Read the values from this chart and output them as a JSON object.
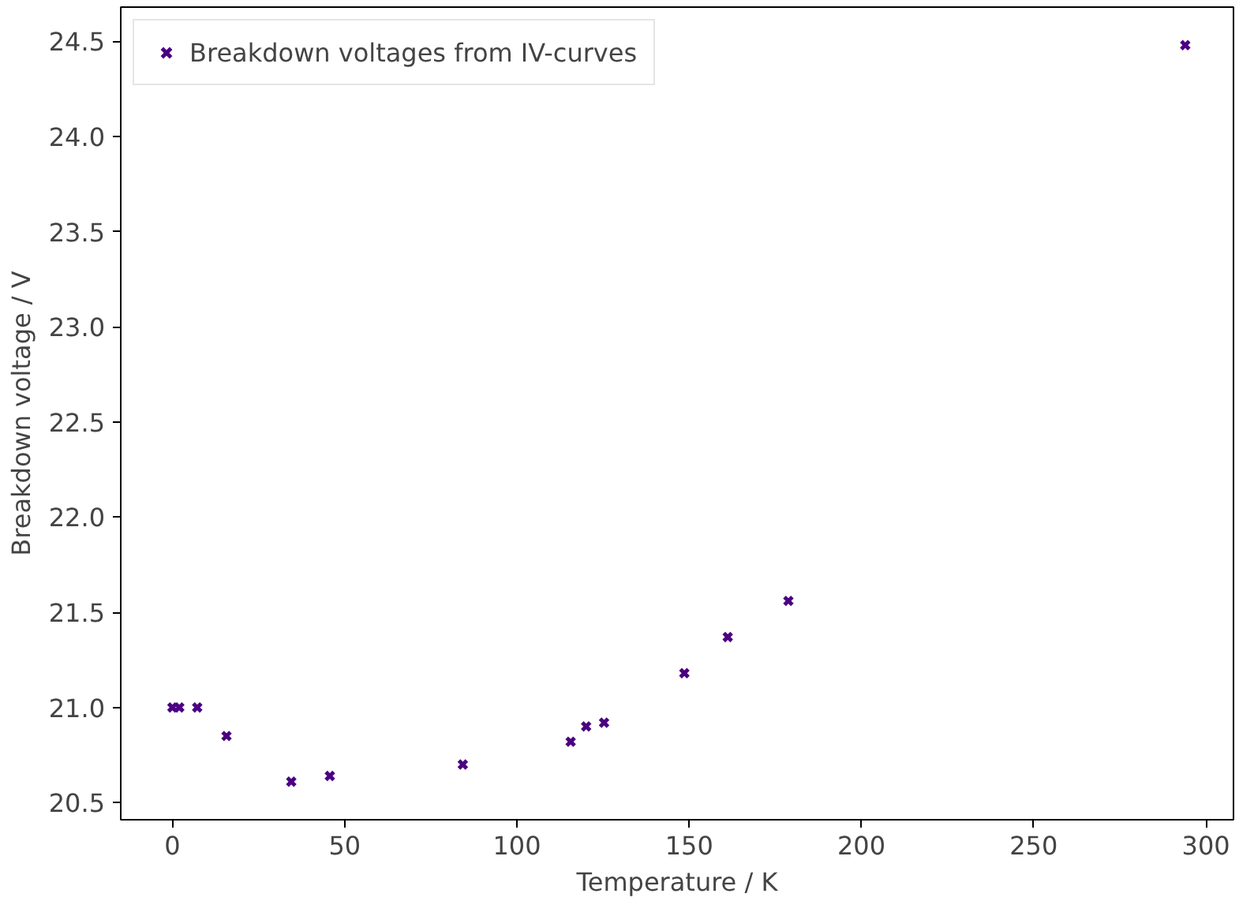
{
  "chart_data": {
    "type": "scatter",
    "xlabel": "Temperature / K",
    "ylabel": "Breakdown voltage / V",
    "x": [
      0,
      2,
      7.2,
      15.7,
      34.5,
      45.7,
      84.3,
      115.6,
      120.1,
      125.3,
      148.6,
      161.2,
      178.8,
      294
    ],
    "series": [
      {
        "name": "Breakdown voltages from IV-curves",
        "color": "#4b0082",
        "values": [
          21.0,
          21.0,
          21.0,
          20.85,
          20.61,
          20.64,
          20.7,
          20.82,
          20.9,
          20.92,
          21.18,
          21.37,
          21.56,
          24.48
        ]
      }
    ],
    "xlim": [
      -15,
      308
    ],
    "ylim": [
      20.41,
      24.68
    ],
    "xticks": [
      0,
      50,
      100,
      150,
      200,
      250,
      300
    ],
    "yticks": [
      {
        "value": 20.5,
        "label": "20.5"
      },
      {
        "value": 21,
        "label": "21.0"
      },
      {
        "value": 21.5,
        "label": "21.5"
      },
      {
        "value": 22,
        "label": "22.0"
      },
      {
        "value": 22.5,
        "label": "22.5"
      },
      {
        "value": 23,
        "label": "23.0"
      },
      {
        "value": 23.5,
        "label": "23.5"
      },
      {
        "value": 24,
        "label": "24.0"
      },
      {
        "value": 24.5,
        "label": "24.5"
      }
    ],
    "marker": "cross",
    "legend": "top left",
    "grid": false
  }
}
